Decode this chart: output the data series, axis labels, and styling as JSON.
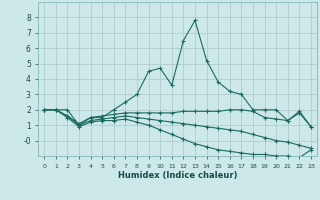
{
  "xlabel": "Humidex (Indice chaleur)",
  "bg_color": "#cce8e8",
  "grid_color": "#b0cccc",
  "line_color": "#1a6a60",
  "xlim": [
    -0.5,
    23.5
  ],
  "ylim": [
    -1,
    9
  ],
  "yticks": [
    0,
    1,
    2,
    3,
    4,
    5,
    6,
    7,
    8
  ],
  "ytick_labels": [
    "-0",
    "1",
    "2",
    "3",
    "4",
    "5",
    "6",
    "7",
    "8"
  ],
  "xticks": [
    0,
    1,
    2,
    3,
    4,
    5,
    6,
    7,
    8,
    9,
    10,
    11,
    12,
    13,
    14,
    15,
    16,
    17,
    18,
    19,
    20,
    21,
    22,
    23
  ],
  "series1_x": [
    0,
    1,
    2,
    3,
    4,
    5,
    6,
    7,
    8,
    9,
    10,
    11,
    12,
    13,
    14,
    15,
    16,
    17,
    18,
    19,
    20,
    21,
    22,
    23
  ],
  "series1_y": [
    2.0,
    2.0,
    2.0,
    1.0,
    1.5,
    1.5,
    2.0,
    2.5,
    3.0,
    4.5,
    4.7,
    3.6,
    6.5,
    7.8,
    5.2,
    3.8,
    3.2,
    3.0,
    2.0,
    2.0,
    2.0,
    1.3,
    1.9,
    0.9
  ],
  "series2_x": [
    0,
    1,
    2,
    3,
    4,
    5,
    6,
    7,
    8,
    9,
    10,
    11,
    12,
    13,
    14,
    15,
    16,
    17,
    18,
    19,
    20,
    21,
    22,
    23
  ],
  "series2_y": [
    2.0,
    2.0,
    1.6,
    1.1,
    1.5,
    1.6,
    1.7,
    1.8,
    1.8,
    1.8,
    1.8,
    1.8,
    1.9,
    1.9,
    1.9,
    1.9,
    2.0,
    2.0,
    1.9,
    1.5,
    1.4,
    1.3,
    1.8,
    0.9
  ],
  "series3_x": [
    0,
    1,
    2,
    3,
    4,
    5,
    6,
    7,
    8,
    9,
    10,
    11,
    12,
    13,
    14,
    15,
    16,
    17,
    18,
    19,
    20,
    21,
    22,
    23
  ],
  "series3_y": [
    2.0,
    2.0,
    1.6,
    1.0,
    1.3,
    1.4,
    1.5,
    1.6,
    1.5,
    1.4,
    1.3,
    1.2,
    1.1,
    1.0,
    0.9,
    0.8,
    0.7,
    0.6,
    0.4,
    0.2,
    0.0,
    -0.1,
    -0.3,
    -0.5
  ],
  "series4_x": [
    0,
    1,
    2,
    3,
    4,
    5,
    6,
    7,
    8,
    9,
    10,
    11,
    12,
    13,
    14,
    15,
    16,
    17,
    18,
    19,
    20,
    21,
    22,
    23
  ],
  "series4_y": [
    2.0,
    2.0,
    1.5,
    0.9,
    1.2,
    1.3,
    1.3,
    1.4,
    1.2,
    1.0,
    0.7,
    0.4,
    0.1,
    -0.2,
    -0.4,
    -0.6,
    -0.7,
    -0.8,
    -0.9,
    -0.9,
    -1.0,
    -1.0,
    -1.1,
    -0.6
  ]
}
